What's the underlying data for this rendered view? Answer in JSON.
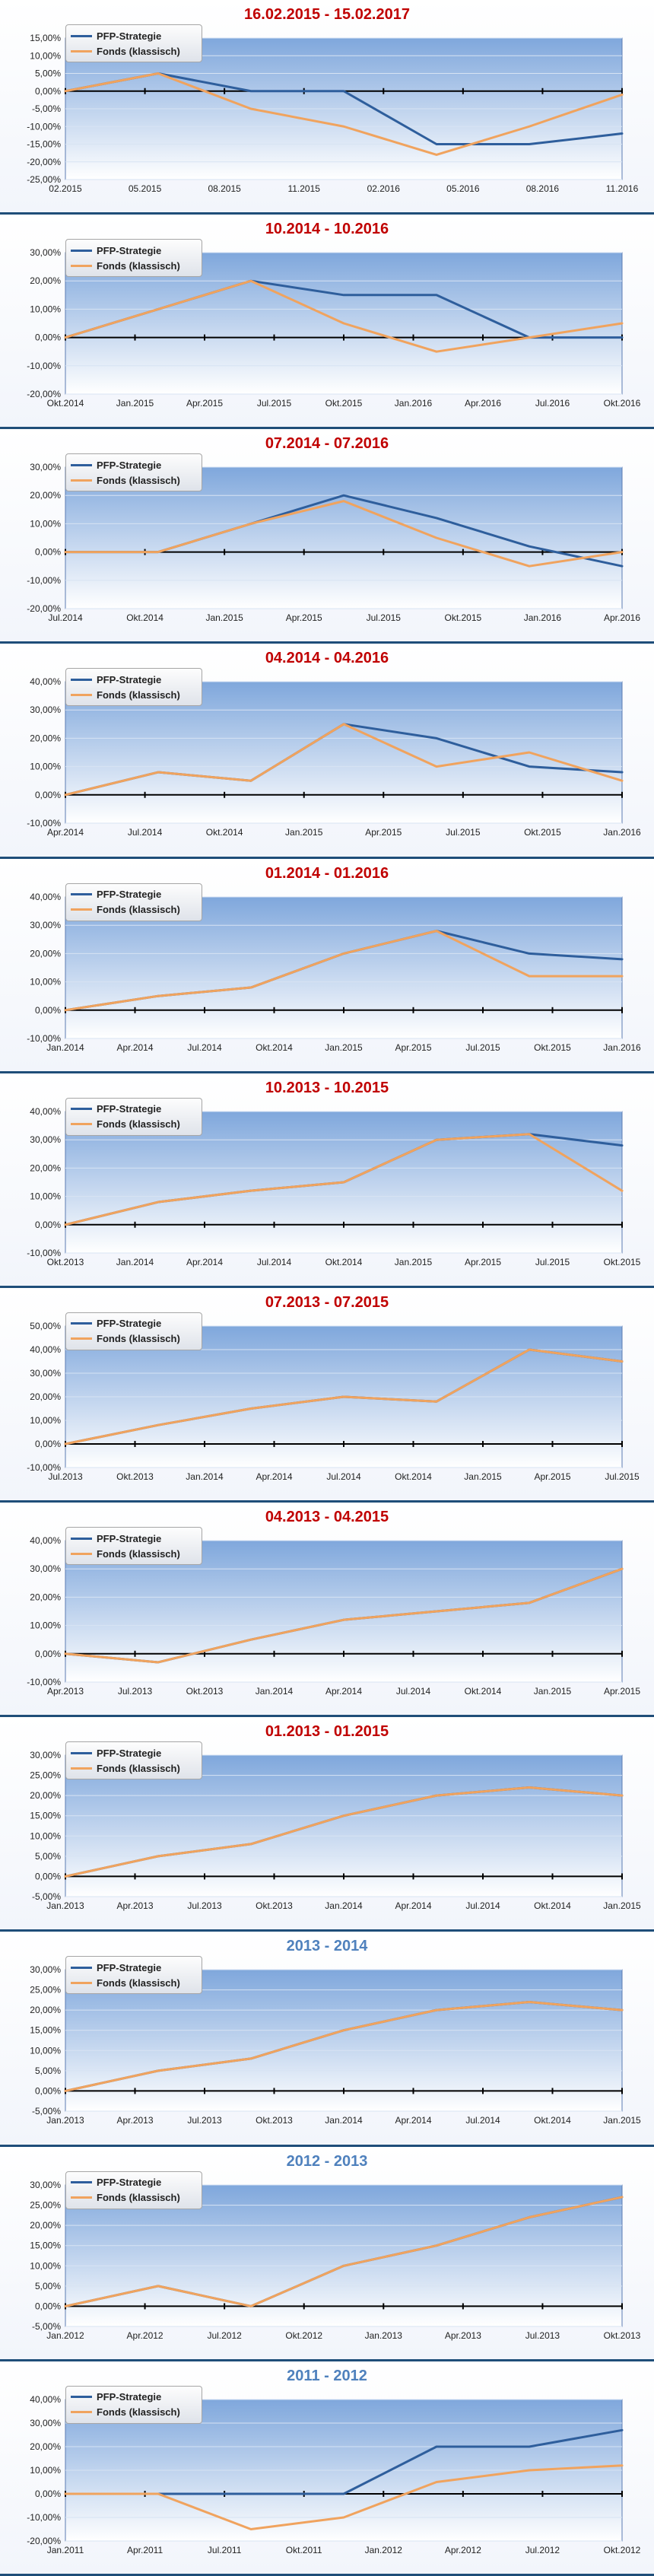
{
  "charts": [
    {
      "title": "16.02.2015 - 15.02.2017",
      "title_color": "red",
      "legend": [
        "PFP-Strategie",
        "Fonds (klassisch)"
      ],
      "series_colors": [
        "#2e5e9c",
        "#f0a35e"
      ],
      "y_ticks": [
        "15,00%",
        "10,00%",
        "5,00%",
        "0,00%",
        "-5,00%",
        "-10,00%",
        "-15,00%",
        "-20,00%",
        "-25,00%"
      ],
      "x_ticks": [
        "02.2015",
        "05.2015",
        "08.2015",
        "11.2015",
        "02.2016",
        "05.2016",
        "08.2016",
        "11.2016"
      ],
      "chart_data": {
        "type": "line",
        "title": "16.02.2015 - 15.02.2017",
        "ylim": [
          -25,
          15
        ],
        "x": [
          0,
          4,
          8,
          12,
          16,
          20,
          24
        ],
        "series": [
          {
            "name": "PFP-Strategie",
            "values": [
              0,
              5,
              0,
              0,
              -15,
              -15,
              -12
            ]
          },
          {
            "name": "Fonds (klassisch)",
            "values": [
              0,
              5,
              -5,
              -10,
              -18,
              -10,
              -1
            ]
          }
        ]
      }
    },
    {
      "title": "10.2014 - 10.2016",
      "title_color": "red",
      "legend": [
        "PFP-Strategie",
        "Fonds (klassisch)"
      ],
      "series_colors": [
        "#2e5e9c",
        "#f0a35e"
      ],
      "y_ticks": [
        "30,00%",
        "20,00%",
        "10,00%",
        "0,00%",
        "-10,00%",
        "-20,00%"
      ],
      "x_ticks": [
        "Okt.2014",
        "Jan.2015",
        "Apr.2015",
        "Jul.2015",
        "Okt.2015",
        "Jan.2016",
        "Apr.2016",
        "Jul.2016",
        "Okt.2016"
      ],
      "chart_data": {
        "type": "line",
        "title": "10.2014 - 10.2016",
        "ylim": [
          -20,
          30
        ],
        "x": [
          0,
          4,
          8,
          12,
          16,
          20,
          24
        ],
        "series": [
          {
            "name": "PFP-Strategie",
            "values": [
              0,
              10,
              20,
              15,
              15,
              0,
              0
            ]
          },
          {
            "name": "Fonds (klassisch)",
            "values": [
              0,
              10,
              20,
              5,
              -5,
              0,
              5
            ]
          }
        ]
      }
    },
    {
      "title": "07.2014 - 07.2016",
      "title_color": "red",
      "legend": [
        "PFP-Strategie",
        "Fonds (klassisch)"
      ],
      "series_colors": [
        "#2e5e9c",
        "#f0a35e"
      ],
      "y_ticks": [
        "30,00%",
        "20,00%",
        "10,00%",
        "0,00%",
        "-10,00%",
        "-20,00%"
      ],
      "x_ticks": [
        "Jul.2014",
        "Okt.2014",
        "Jan.2015",
        "Apr.2015",
        "Jul.2015",
        "Okt.2015",
        "Jan.2016",
        "Apr.2016"
      ],
      "chart_data": {
        "type": "line",
        "title": "07.2014 - 07.2016",
        "ylim": [
          -20,
          30
        ],
        "x": [
          0,
          4,
          8,
          12,
          16,
          20,
          24
        ],
        "series": [
          {
            "name": "PFP-Strategie",
            "values": [
              0,
              0,
              10,
              20,
              12,
              2,
              -5
            ]
          },
          {
            "name": "Fonds (klassisch)",
            "values": [
              0,
              0,
              10,
              18,
              5,
              -5,
              0
            ]
          }
        ]
      }
    },
    {
      "title": "04.2014 - 04.2016",
      "title_color": "red",
      "legend": [
        "PFP-Strategie",
        "Fonds (klassisch)"
      ],
      "series_colors": [
        "#2e5e9c",
        "#f0a35e"
      ],
      "y_ticks": [
        "40,00%",
        "30,00%",
        "20,00%",
        "10,00%",
        "0,00%",
        "-10,00%"
      ],
      "x_ticks": [
        "Apr.2014",
        "Jul.2014",
        "Okt.2014",
        "Jan.2015",
        "Apr.2015",
        "Jul.2015",
        "Okt.2015",
        "Jan.2016"
      ],
      "chart_data": {
        "type": "line",
        "title": "04.2014 - 04.2016",
        "ylim": [
          -10,
          40
        ],
        "x": [
          0,
          4,
          8,
          12,
          16,
          20,
          24
        ],
        "series": [
          {
            "name": "PFP-Strategie",
            "values": [
              0,
              8,
              5,
              25,
              20,
              10,
              8
            ]
          },
          {
            "name": "Fonds (klassisch)",
            "values": [
              0,
              8,
              5,
              25,
              10,
              15,
              5
            ]
          }
        ]
      }
    },
    {
      "title": "01.2014 - 01.2016",
      "title_color": "red",
      "legend": [
        "PFP-Strategie",
        "Fonds (klassisch)"
      ],
      "series_colors": [
        "#2e5e9c",
        "#f0a35e"
      ],
      "y_ticks": [
        "40,00%",
        "30,00%",
        "20,00%",
        "10,00%",
        "0,00%",
        "-10,00%"
      ],
      "x_ticks": [
        "Jan.2014",
        "Apr.2014",
        "Jul.2014",
        "Okt.2014",
        "Jan.2015",
        "Apr.2015",
        "Jul.2015",
        "Okt.2015",
        "Jan.2016"
      ],
      "chart_data": {
        "type": "line",
        "title": "01.2014 - 01.2016",
        "ylim": [
          -10,
          40
        ],
        "x": [
          0,
          4,
          8,
          12,
          16,
          20,
          24
        ],
        "series": [
          {
            "name": "PFP-Strategie",
            "values": [
              0,
              5,
              8,
              20,
              28,
              20,
              18
            ]
          },
          {
            "name": "Fonds (klassisch)",
            "values": [
              0,
              5,
              8,
              20,
              28,
              12,
              12
            ]
          }
        ]
      }
    },
    {
      "title": "10.2013 - 10.2015",
      "title_color": "red",
      "legend": [
        "PFP-Strategie",
        "Fonds (klassisch)"
      ],
      "series_colors": [
        "#2e5e9c",
        "#f0a35e"
      ],
      "y_ticks": [
        "40,00%",
        "30,00%",
        "20,00%",
        "10,00%",
        "0,00%",
        "-10,00%"
      ],
      "x_ticks": [
        "Okt.2013",
        "Jan.2014",
        "Apr.2014",
        "Jul.2014",
        "Okt.2014",
        "Jan.2015",
        "Apr.2015",
        "Jul.2015",
        "Okt.2015"
      ],
      "chart_data": {
        "type": "line",
        "title": "10.2013 - 10.2015",
        "ylim": [
          -10,
          40
        ],
        "x": [
          0,
          4,
          8,
          12,
          16,
          20,
          24
        ],
        "series": [
          {
            "name": "PFP-Strategie",
            "values": [
              0,
              8,
              12,
              15,
              30,
              32,
              28
            ]
          },
          {
            "name": "Fonds (klassisch)",
            "values": [
              0,
              8,
              12,
              15,
              30,
              32,
              12
            ]
          }
        ]
      }
    },
    {
      "title": "07.2013 - 07.2015",
      "title_color": "red",
      "legend": [
        "PFP-Strategie",
        "Fonds (klassisch)"
      ],
      "series_colors": [
        "#2e5e9c",
        "#f0a35e"
      ],
      "y_ticks": [
        "50,00%",
        "40,00%",
        "30,00%",
        "20,00%",
        "10,00%",
        "0,00%",
        "-10,00%"
      ],
      "x_ticks": [
        "Jul.2013",
        "Okt.2013",
        "Jan.2014",
        "Apr.2014",
        "Jul.2014",
        "Okt.2014",
        "Jan.2015",
        "Apr.2015",
        "Jul.2015"
      ],
      "chart_data": {
        "type": "line",
        "title": "07.2013 - 07.2015",
        "ylim": [
          -10,
          50
        ],
        "x": [
          0,
          4,
          8,
          12,
          16,
          20,
          24
        ],
        "series": [
          {
            "name": "PFP-Strategie",
            "values": [
              0,
              8,
              15,
              20,
              18,
              40,
              35
            ]
          },
          {
            "name": "Fonds (klassisch)",
            "values": [
              0,
              8,
              15,
              20,
              18,
              40,
              35
            ]
          }
        ]
      }
    },
    {
      "title": "04.2013 - 04.2015",
      "title_color": "red",
      "legend": [
        "PFP-Strategie",
        "Fonds (klassisch)"
      ],
      "series_colors": [
        "#2e5e9c",
        "#f0a35e"
      ],
      "y_ticks": [
        "40,00%",
        "30,00%",
        "20,00%",
        "10,00%",
        "0,00%",
        "-10,00%"
      ],
      "x_ticks": [
        "Apr.2013",
        "Jul.2013",
        "Okt.2013",
        "Jan.2014",
        "Apr.2014",
        "Jul.2014",
        "Okt.2014",
        "Jan.2015",
        "Apr.2015"
      ],
      "chart_data": {
        "type": "line",
        "title": "04.2013 - 04.2015",
        "ylim": [
          -10,
          40
        ],
        "x": [
          0,
          4,
          8,
          12,
          16,
          20,
          24
        ],
        "series": [
          {
            "name": "PFP-Strategie",
            "values": [
              0,
              -3,
              5,
              12,
              15,
              18,
              30
            ]
          },
          {
            "name": "Fonds (klassisch)",
            "values": [
              0,
              -3,
              5,
              12,
              15,
              18,
              30
            ]
          }
        ]
      }
    },
    {
      "title": "01.2013 - 01.2015",
      "title_color": "red",
      "legend": [
        "PFP-Strategie",
        "Fonds (klassisch)"
      ],
      "series_colors": [
        "#2e5e9c",
        "#f0a35e"
      ],
      "y_ticks": [
        "30,00%",
        "25,00%",
        "20,00%",
        "15,00%",
        "10,00%",
        "5,00%",
        "0,00%",
        "-5,00%"
      ],
      "x_ticks": [
        "Jan.2013",
        "Apr.2013",
        "Jul.2013",
        "Okt.2013",
        "Jan.2014",
        "Apr.2014",
        "Jul.2014",
        "Okt.2014",
        "Jan.2015"
      ],
      "chart_data": {
        "type": "line",
        "title": "01.2013 - 01.2015",
        "ylim": [
          -5,
          30
        ],
        "x": [
          0,
          4,
          8,
          12,
          16,
          20,
          24
        ],
        "series": [
          {
            "name": "PFP-Strategie",
            "values": [
              0,
              5,
              8,
              15,
              20,
              22,
              20
            ]
          },
          {
            "name": "Fonds (klassisch)",
            "values": [
              0,
              5,
              8,
              15,
              20,
              22,
              20
            ]
          }
        ]
      }
    },
    {
      "title": "2013 - 2014",
      "title_color": "blue",
      "legend": [
        "PFP-Strategie",
        "Fonds (klassisch)"
      ],
      "series_colors": [
        "#2e5e9c",
        "#f0a35e"
      ],
      "y_ticks": [
        "30,00%",
        "25,00%",
        "20,00%",
        "15,00%",
        "10,00%",
        "5,00%",
        "0,00%",
        "-5,00%"
      ],
      "x_ticks": [
        "Jan.2013",
        "Apr.2013",
        "Jul.2013",
        "Okt.2013",
        "Jan.2014",
        "Apr.2014",
        "Jul.2014",
        "Okt.2014",
        "Jan.2015"
      ],
      "chart_data": {
        "type": "line",
        "title": "2013 - 2014",
        "ylim": [
          -5,
          30
        ],
        "x": [
          0,
          4,
          8,
          12,
          16,
          20,
          24
        ],
        "series": [
          {
            "name": "PFP-Strategie",
            "values": [
              0,
              5,
              8,
              15,
              20,
              22,
              20
            ]
          },
          {
            "name": "Fonds (klassisch)",
            "values": [
              0,
              5,
              8,
              15,
              20,
              22,
              20
            ]
          }
        ]
      }
    },
    {
      "title": "2012 - 2013",
      "title_color": "blue",
      "legend": [
        "PFP-Strategie",
        "Fonds (klassisch)"
      ],
      "series_colors": [
        "#2e5e9c",
        "#f0a35e"
      ],
      "y_ticks": [
        "30,00%",
        "25,00%",
        "20,00%",
        "15,00%",
        "10,00%",
        "5,00%",
        "0,00%",
        "-5,00%"
      ],
      "x_ticks": [
        "Jan.2012",
        "Apr.2012",
        "Jul.2012",
        "Okt.2012",
        "Jan.2013",
        "Apr.2013",
        "Jul.2013",
        "Okt.2013"
      ],
      "chart_data": {
        "type": "line",
        "title": "2012 - 2013",
        "ylim": [
          -5,
          30
        ],
        "x": [
          0,
          4,
          8,
          12,
          16,
          20,
          24
        ],
        "series": [
          {
            "name": "PFP-Strategie",
            "values": [
              0,
              5,
              0,
              10,
              15,
              22,
              27
            ]
          },
          {
            "name": "Fonds (klassisch)",
            "values": [
              0,
              5,
              0,
              10,
              15,
              22,
              27
            ]
          }
        ]
      }
    },
    {
      "title": "2011 - 2012",
      "title_color": "blue",
      "legend": [
        "PFP-Strategie",
        "Fonds (klassisch)"
      ],
      "series_colors": [
        "#2e5e9c",
        "#f0a35e"
      ],
      "y_ticks": [
        "40,00%",
        "30,00%",
        "20,00%",
        "10,00%",
        "0,00%",
        "-10,00%",
        "-20,00%"
      ],
      "x_ticks": [
        "Jan.2011",
        "Apr.2011",
        "Jul.2011",
        "Okt.2011",
        "Jan.2012",
        "Apr.2012",
        "Jul.2012",
        "Okt.2012"
      ],
      "chart_data": {
        "type": "line",
        "title": "2011 - 2012",
        "ylim": [
          -20,
          40
        ],
        "x": [
          0,
          4,
          8,
          12,
          16,
          20,
          24
        ],
        "series": [
          {
            "name": "PFP-Strategie",
            "values": [
              0,
              0,
              0,
              0,
              20,
              20,
              27
            ]
          },
          {
            "name": "Fonds (klassisch)",
            "values": [
              0,
              0,
              -15,
              -10,
              5,
              10,
              12
            ]
          }
        ]
      }
    }
  ]
}
